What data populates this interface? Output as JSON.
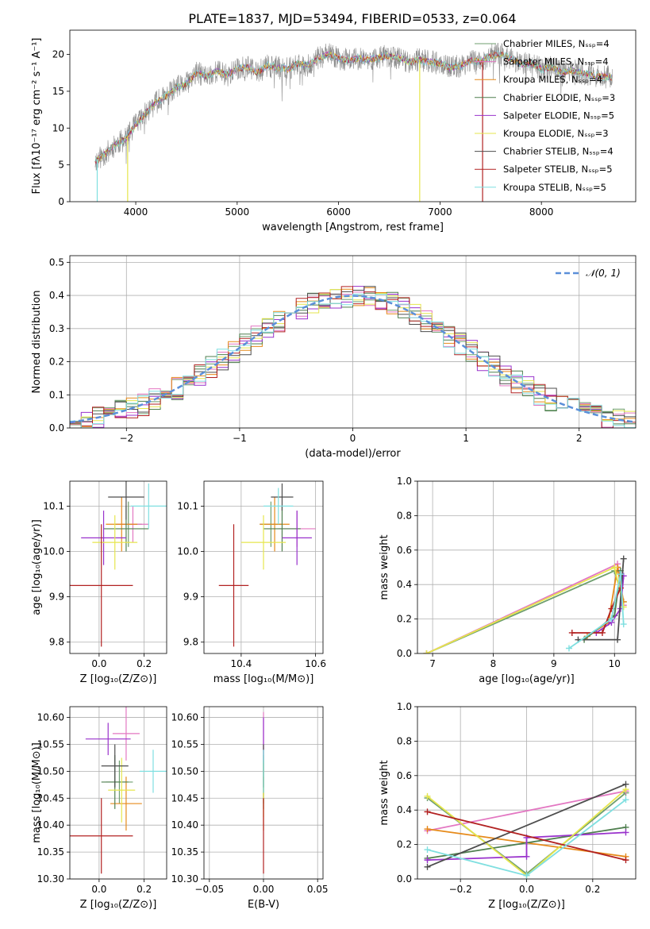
{
  "figure_title": "PLATE=1837, MJD=53494, FIBERID=0533, z=0.064",
  "palette": [
    "#6f9f6f",
    "#e377c2",
    "#e68a1a",
    "#4f7f4f",
    "#9932cc",
    "#e6e64d",
    "#4d4d4d",
    "#b22222",
    "#7fdfe0"
  ],
  "chart_data": [
    {
      "id": "spectrum",
      "type": "line",
      "xlabel": "wavelength [Angstrom, rest frame]",
      "ylabel": "Flux [fλ10⁻¹⁷ erg cm⁻² s⁻¹ A⁻¹]",
      "xlim": [
        3350,
        8930
      ],
      "ylim": [
        0,
        23.3
      ],
      "xticks": [
        4000,
        5000,
        6000,
        7000,
        8000
      ],
      "yticks": [
        0,
        5,
        10,
        15,
        20
      ],
      "grid": false,
      "legend_loc": "right",
      "x": [
        3600,
        3700,
        3800,
        3900,
        4000,
        4100,
        4200,
        4300,
        4400,
        4500,
        4600,
        4700,
        4800,
        4900,
        5000,
        5100,
        5200,
        5300,
        5400,
        5500,
        5600,
        5700,
        5800,
        5900,
        6000,
        6100,
        6200,
        6300,
        6400,
        6500,
        6600,
        6700,
        6800,
        6900,
        7000,
        7100,
        7200,
        7300,
        7400,
        7500,
        7600,
        7700,
        7800,
        7900,
        8000,
        8100,
        8200,
        8300,
        8400,
        8500,
        8600,
        8700
      ],
      "y": [
        5.5,
        6.5,
        7.8,
        8.5,
        10.5,
        12.0,
        13.5,
        14.3,
        15.5,
        16.0,
        17.5,
        17.0,
        17.8,
        17.2,
        18.0,
        18.3,
        17.5,
        18.5,
        18.2,
        18.0,
        18.8,
        18.5,
        19.5,
        20.0,
        19.5,
        19.2,
        19.5,
        19.3,
        19.6,
        19.8,
        19.5,
        19.0,
        19.3,
        19.0,
        18.8,
        18.2,
        18.4,
        19.2,
        19.0,
        19.8,
        20.0,
        19.4,
        18.7,
        18.8,
        18.0,
        18.3,
        17.5,
        17.8,
        17.5,
        17.2,
        17.0,
        16.9
      ],
      "series": [
        {
          "name": "Chabrier MILES, Nₛₛₚ=4"
        },
        {
          "name": "Salpeter MILES, Nₛₛₚ=4"
        },
        {
          "name": "Kroupa MILES, Nₛₛₚ=4"
        },
        {
          "name": "Chabrier ELODIE, Nₛₛₚ=3"
        },
        {
          "name": "Salpeter ELODIE, Nₛₛₚ=5"
        },
        {
          "name": "Kroupa ELODIE, Nₛₛₚ=3"
        },
        {
          "name": "Chabrier STELIB, Nₛₛₚ=4"
        },
        {
          "name": "Salpeter STELIB, Nₛₛₚ=5"
        },
        {
          "name": "Kroupa STELIB, Nₛₛₚ=5"
        }
      ]
    },
    {
      "id": "residual-hist",
      "type": "area",
      "xlabel": "(data-model)/error",
      "ylabel": "Normed distribution",
      "xlim": [
        -2.5,
        2.5
      ],
      "ylim": [
        0,
        0.52
      ],
      "xticks": [
        -2,
        -1,
        0,
        1,
        2
      ],
      "yticks": [
        0.0,
        0.1,
        0.2,
        0.3,
        0.4,
        0.5
      ],
      "grid": true,
      "legend_loc": "upper right",
      "legend": [
        "𝒩(0, 1)"
      ],
      "bin_width": 0.1,
      "gaussian": {
        "mean": 0,
        "sigma": 1
      }
    },
    {
      "id": "age-vs-Z",
      "type": "scatter",
      "xlabel": "Z [log₁₀(Z/Z⊙)]",
      "ylabel": "age  [log₁₀(age/yr)]",
      "xlim": [
        -0.13,
        0.3
      ],
      "ylim": [
        9.775,
        10.155
      ],
      "xticks": [
        0.0,
        0.2
      ],
      "yticks": [
        9.8,
        9.9,
        10.0,
        10.1
      ],
      "grid": true,
      "points": [
        {
          "x": 0.13,
          "y": 10.06,
          "xerr": 0.06,
          "yerr": 0.05
        },
        {
          "x": 0.15,
          "y": 10.06,
          "xerr": 0.07,
          "yerr": 0.04
        },
        {
          "x": 0.1,
          "y": 10.06,
          "xerr": 0.07,
          "yerr": 0.06
        },
        {
          "x": 0.12,
          "y": 10.05,
          "xerr": 0.1,
          "yerr": 0.05
        },
        {
          "x": 0.02,
          "y": 10.03,
          "xerr": 0.1,
          "yerr": 0.06
        },
        {
          "x": 0.07,
          "y": 10.02,
          "xerr": 0.1,
          "yerr": 0.06
        },
        {
          "x": 0.12,
          "y": 10.12,
          "xerr": 0.08,
          "yerr": 0.05
        },
        {
          "x": 0.01,
          "y": 9.925,
          "xerr": 0.14,
          "yerr": 0.135
        },
        {
          "x": 0.22,
          "y": 10.1,
          "xerr": 0.08,
          "yerr": 0.05
        }
      ]
    },
    {
      "id": "age-vs-mass",
      "type": "scatter",
      "xlabel": "mass [log₁₀(M/M⊙)]",
      "ylabel": "",
      "xlim": [
        10.3,
        10.62
      ],
      "ylim": [
        9.775,
        10.155
      ],
      "xticks": [
        10.4,
        10.6
      ],
      "yticks": [
        9.8,
        9.9,
        10.0,
        10.1
      ],
      "grid": true,
      "points": [
        {
          "x": 10.48,
          "y": 10.06,
          "xerr": 0.03,
          "yerr": 0.05
        },
        {
          "x": 10.55,
          "y": 10.05,
          "xerr": 0.05,
          "yerr": 0.04
        },
        {
          "x": 10.49,
          "y": 10.06,
          "xerr": 0.04,
          "yerr": 0.06
        },
        {
          "x": 10.51,
          "y": 10.05,
          "xerr": 0.05,
          "yerr": 0.05
        },
        {
          "x": 10.55,
          "y": 10.03,
          "xerr": 0.04,
          "yerr": 0.06
        },
        {
          "x": 10.46,
          "y": 10.02,
          "xerr": 0.06,
          "yerr": 0.06
        },
        {
          "x": 10.51,
          "y": 10.12,
          "xerr": 0.03,
          "yerr": 0.03
        },
        {
          "x": 10.38,
          "y": 9.925,
          "xerr": 0.04,
          "yerr": 0.135
        },
        {
          "x": 10.5,
          "y": 10.1,
          "xerr": 0.04,
          "yerr": 0.04
        }
      ]
    },
    {
      "id": "weight-vs-age",
      "type": "line",
      "xlabel": "age  [log₁₀(age/yr)]",
      "ylabel": "mass weight",
      "xlim": [
        6.75,
        10.35
      ],
      "ylim": [
        0,
        1.0
      ],
      "xticks": [
        7,
        8,
        9,
        10
      ],
      "yticks": [
        0.0,
        0.2,
        0.4,
        0.6,
        0.8,
        1.0
      ],
      "grid": true,
      "series": [
        {
          "x": [
            6.9,
            10.0,
            10.15
          ],
          "y": [
            0.0,
            0.48,
            0.3
          ]
        },
        {
          "x": [
            6.9,
            10.05,
            10.15
          ],
          "y": [
            0.0,
            0.52,
            0.28
          ]
        },
        {
          "x": [
            9.55,
            9.9,
            10.05,
            10.15
          ],
          "y": [
            0.1,
            0.18,
            0.5,
            0.3
          ]
        },
        {
          "x": [
            9.5,
            10.0,
            10.1
          ],
          "y": [
            0.08,
            0.22,
            0.48
          ]
        },
        {
          "x": [
            9.7,
            9.95,
            10.1,
            10.15
          ],
          "y": [
            0.12,
            0.18,
            0.26,
            0.45
          ]
        },
        {
          "x": [
            6.9,
            10.0,
            10.15
          ],
          "y": [
            0.0,
            0.5,
            0.27
          ]
        },
        {
          "x": [
            9.4,
            10.05,
            10.15
          ],
          "y": [
            0.08,
            0.08,
            0.55
          ]
        },
        {
          "x": [
            9.3,
            9.8,
            9.95,
            10.1
          ],
          "y": [
            0.12,
            0.12,
            0.26,
            0.38
          ]
        },
        {
          "x": [
            9.25,
            9.95,
            10.1,
            10.15
          ],
          "y": [
            0.03,
            0.2,
            0.46,
            0.17
          ]
        }
      ]
    },
    {
      "id": "mass-vs-Z",
      "type": "scatter",
      "xlabel": "Z [log₁₀(Z/Z⊙)]",
      "ylabel": "mass [log₁₀(M/M⊙)]",
      "xlim": [
        -0.13,
        0.3
      ],
      "ylim": [
        10.3,
        10.62
      ],
      "xticks": [
        0.0,
        0.2
      ],
      "yticks": [
        10.3,
        10.35,
        10.4,
        10.45,
        10.5,
        10.55,
        10.6
      ],
      "grid": true,
      "points": [
        {
          "x": 0.09,
          "y": 10.48,
          "xerr": 0.06,
          "yerr": 0.04
        },
        {
          "x": 0.12,
          "y": 10.57,
          "xerr": 0.06,
          "yerr": 0.05
        },
        {
          "x": 0.12,
          "y": 10.44,
          "xerr": 0.07,
          "yerr": 0.05
        },
        {
          "x": 0.07,
          "y": 10.48,
          "xerr": 0.06,
          "yerr": 0.05
        },
        {
          "x": 0.04,
          "y": 10.56,
          "xerr": 0.1,
          "yerr": 0.03
        },
        {
          "x": 0.1,
          "y": 10.465,
          "xerr": 0.06,
          "yerr": 0.06
        },
        {
          "x": 0.07,
          "y": 10.51,
          "xerr": 0.06,
          "yerr": 0.04
        },
        {
          "x": 0.01,
          "y": 10.38,
          "xerr": 0.14,
          "yerr": 0.07
        },
        {
          "x": 0.24,
          "y": 10.5,
          "xerr": 0.06,
          "yerr": 0.04
        }
      ]
    },
    {
      "id": "mass-vs-ebv",
      "type": "scatter",
      "xlabel": "E(B-V)",
      "ylabel": "",
      "xlim": [
        -0.055,
        0.055
      ],
      "ylim": [
        10.3,
        10.62
      ],
      "xticks": [
        -0.05,
        0.0,
        0.05
      ],
      "yticks": [
        10.3,
        10.35,
        10.4,
        10.45,
        10.5,
        10.55,
        10.6
      ],
      "grid": true,
      "points": [
        {
          "x": 0,
          "y": 10.48,
          "xerr": 0,
          "yerr": 0.04
        },
        {
          "x": 0,
          "y": 10.57,
          "xerr": 0,
          "yerr": 0.04
        },
        {
          "x": 0,
          "y": 10.44,
          "xerr": 0,
          "yerr": 0.05
        },
        {
          "x": 0,
          "y": 10.48,
          "xerr": 0,
          "yerr": 0.05
        },
        {
          "x": 0,
          "y": 10.56,
          "xerr": 0,
          "yerr": 0.04
        },
        {
          "x": 0,
          "y": 10.465,
          "xerr": 0,
          "yerr": 0.05
        },
        {
          "x": 0,
          "y": 10.51,
          "xerr": 0,
          "yerr": 0.04
        },
        {
          "x": 0,
          "y": 10.38,
          "xerr": 0,
          "yerr": 0.07
        },
        {
          "x": 0,
          "y": 10.5,
          "xerr": 0,
          "yerr": 0.04
        }
      ]
    },
    {
      "id": "weight-vs-Z",
      "type": "line",
      "xlabel": "Z [log₁₀(Z/Z⊙)]",
      "ylabel": "mass weight",
      "xlim": [
        -0.33,
        0.33
      ],
      "ylim": [
        0,
        1.0
      ],
      "xticks": [
        -0.2,
        0.0,
        0.2
      ],
      "yticks": [
        0.0,
        0.2,
        0.4,
        0.6,
        0.8,
        1.0
      ],
      "grid": true,
      "series": [
        {
          "x": [
            -0.3,
            0.0,
            0.3
          ],
          "y": [
            0.47,
            0.03,
            0.5
          ]
        },
        {
          "x": [
            -0.3,
            0.3
          ],
          "y": [
            0.28,
            0.51
          ]
        },
        {
          "x": [
            -0.3,
            0.3
          ],
          "y": [
            0.29,
            0.13
          ]
        },
        {
          "x": [
            -0.3,
            0.3
          ],
          "y": [
            0.12,
            0.3
          ]
        },
        {
          "x": [
            -0.3,
            0.0,
            0.0,
            0.3
          ],
          "y": [
            0.11,
            0.13,
            0.24,
            0.27
          ]
        },
        {
          "x": [
            -0.3,
            0.0,
            0.3
          ],
          "y": [
            0.48,
            0.02,
            0.52
          ]
        },
        {
          "x": [
            -0.3,
            0.3
          ],
          "y": [
            0.07,
            0.55
          ]
        },
        {
          "x": [
            -0.3,
            0.3
          ],
          "y": [
            0.39,
            0.11
          ]
        },
        {
          "x": [
            -0.3,
            0.0,
            0.3
          ],
          "y": [
            0.17,
            0.02,
            0.46
          ]
        }
      ]
    }
  ]
}
